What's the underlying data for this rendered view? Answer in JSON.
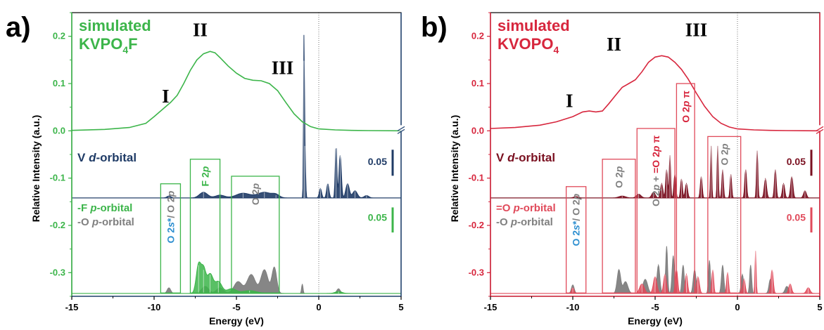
{
  "chart_data": [
    {
      "type": "line",
      "panel_letter": "a)",
      "title_line1": "simulated",
      "title_formula": {
        "base": "KVPO",
        "sub": "4",
        "tail": "F"
      },
      "xlabel": "Energy (eV)",
      "ylabel": "Relative Intensity (a.u.)",
      "xlim": [
        -15,
        5
      ],
      "ylim": [
        -0.35,
        0.25
      ],
      "x_ticks": [
        "-15",
        "-10",
        "-5",
        "0",
        "5"
      ],
      "y_ticks": [
        "0.2",
        "0.1",
        "0.0",
        "-0.1",
        "-0.2",
        "-0.3"
      ],
      "axis_color": "#2e4f7a",
      "tick_color": "#3cb54a",
      "peaks": [
        {
          "label": "I",
          "x": -9.3,
          "y": 0.06
        },
        {
          "label": "II",
          "x": -7.2,
          "y": 0.2
        },
        {
          "label": "III",
          "x": -2.2,
          "y": 0.12
        }
      ],
      "series": [
        {
          "kind": "line",
          "color": "#3cb54a",
          "x": [
            -15,
            -13,
            -11.5,
            -10.5,
            -10,
            -9.5,
            -9,
            -8.6,
            -8.2,
            -7.8,
            -7.4,
            -7,
            -6.6,
            -6.3,
            -6,
            -5.5,
            -5,
            -4.5,
            -4,
            -3.5,
            -3,
            -2.5,
            -2,
            -1.5,
            -1,
            -0.5,
            0,
            1,
            2,
            3,
            5
          ],
          "y": [
            0.001,
            0.003,
            0.007,
            0.016,
            0.03,
            0.045,
            0.06,
            0.075,
            0.1,
            0.128,
            0.15,
            0.163,
            0.168,
            0.165,
            0.155,
            0.137,
            0.122,
            0.111,
            0.107,
            0.106,
            0.1,
            0.085,
            0.06,
            0.036,
            0.019,
            0.009,
            0.004,
            0.002,
            0.001,
            0.0005,
            0
          ]
        }
      ],
      "v_orbital": {
        "label_prefix": "V ",
        "label_italic": "d",
        "label_suffix": "-orbital",
        "color": "#1f3b66",
        "baseline": -0.142,
        "scale_label": "0.05",
        "peaks": [
          {
            "x": -9.1,
            "h": 0.004,
            "w": 0.18
          },
          {
            "x": -7.0,
            "h": 0.012,
            "w": 0.35
          },
          {
            "x": -6.0,
            "h": 0.006,
            "w": 0.4
          },
          {
            "x": -4.6,
            "h": 0.01,
            "w": 0.6
          },
          {
            "x": -3.3,
            "h": 0.012,
            "w": 0.6
          },
          {
            "x": -2.6,
            "h": 0.006,
            "w": 0.3
          },
          {
            "x": -0.9,
            "h": 0.29,
            "w": 0.04
          },
          {
            "x": -0.85,
            "h": 0.11,
            "w": 0.06
          },
          {
            "x": 0.1,
            "h": 0.02,
            "w": 0.1
          },
          {
            "x": 0.55,
            "h": 0.03,
            "w": 0.1
          },
          {
            "x": 1.05,
            "h": 0.11,
            "w": 0.07
          },
          {
            "x": 1.3,
            "h": 0.09,
            "w": 0.1
          },
          {
            "x": 1.75,
            "h": 0.03,
            "w": 0.15
          },
          {
            "x": 2.2,
            "h": 0.015,
            "w": 0.2
          },
          {
            "x": 2.9,
            "h": 0.005,
            "w": 0.2
          }
        ]
      },
      "p_orbital": {
        "legend_line1": "-F ",
        "legend_line1_italic": "p",
        "legend_line1_suffix": "-orbital",
        "legend_line2": "-O ",
        "legend_line2_italic": "p",
        "legend_line2_suffix": "-orbital",
        "primary_color": "#3cb54a",
        "secondary_color": "#808080",
        "baseline": -0.344,
        "scale_label": "0.05",
        "gray_peaks": [
          {
            "x": -9.1,
            "h": 0.012,
            "w": 0.15
          },
          {
            "x": -6.9,
            "h": 0.015,
            "w": 0.3
          },
          {
            "x": -6.0,
            "h": 0.012,
            "w": 0.3
          },
          {
            "x": -4.9,
            "h": 0.025,
            "w": 0.35
          },
          {
            "x": -4.1,
            "h": 0.04,
            "w": 0.35
          },
          {
            "x": -3.3,
            "h": 0.05,
            "w": 0.3
          },
          {
            "x": -2.7,
            "h": 0.055,
            "w": 0.2
          },
          {
            "x": -1.0,
            "h": 0.02,
            "w": 0.06
          },
          {
            "x": 1.2,
            "h": 0.01,
            "w": 0.15
          }
        ],
        "green_peaks": [
          {
            "x": -7.3,
            "h": 0.06,
            "w": 0.2
          },
          {
            "x": -7.0,
            "h": 0.05,
            "w": 0.2
          },
          {
            "x": -6.6,
            "h": 0.04,
            "w": 0.25
          },
          {
            "x": -6.1,
            "h": 0.025,
            "w": 0.3
          },
          {
            "x": -5.3,
            "h": 0.01,
            "w": 0.4
          },
          {
            "x": -4.2,
            "h": 0.006,
            "w": 0.6
          },
          {
            "x": 1.2,
            "h": 0.004,
            "w": 0.3
          }
        ]
      },
      "boxes": [
        {
          "x0": -9.6,
          "x1": -8.4,
          "y0": -0.343,
          "y1": -0.112,
          "label": "O 2s*/ O 2p",
          "label_parts": [
            {
              "t": "O 2",
              "c": "#2e8fd0"
            },
            {
              "t": "s",
              "c": "#2e8fd0",
              "i": true
            },
            {
              "t": "*",
              "c": "#2e8fd0"
            },
            {
              "t": "/ O 2",
              "c": "#808080"
            },
            {
              "t": "p",
              "c": "#808080",
              "i": true
            }
          ],
          "color": "#3cb54a"
        },
        {
          "x0": -7.8,
          "x1": -6.0,
          "y0": -0.343,
          "y1": -0.06,
          "label": "F 2p",
          "label_parts": [
            {
              "t": "F 2",
              "c": "#3cb54a"
            },
            {
              "t": "p",
              "c": "#3cb54a",
              "i": true
            }
          ],
          "color": "#3cb54a"
        },
        {
          "x0": -5.3,
          "x1": -2.4,
          "y0": -0.343,
          "y1": -0.096,
          "label": "O 2p",
          "label_parts": [
            {
              "t": "O 2",
              "c": "#808080"
            },
            {
              "t": "p",
              "c": "#808080",
              "i": true
            }
          ],
          "color": "#3cb54a"
        }
      ]
    },
    {
      "type": "line",
      "panel_letter": "b)",
      "title_line1": "simulated",
      "title_formula": {
        "base": "KVOPO",
        "sub": "4",
        "tail": ""
      },
      "xlabel": "Energy (eV)",
      "ylabel": "Relative Intensity (a.u.)",
      "xlim": [
        -15,
        5
      ],
      "ylim": [
        -0.35,
        0.25
      ],
      "x_ticks": [
        "-15",
        "-10",
        "-5",
        "0",
        "5"
      ],
      "y_ticks": [
        "0.2",
        "0.1",
        "0.0",
        "-0.1",
        "-0.2",
        "-0.3"
      ],
      "axis_color": "#d7263d",
      "tick_color": "#d7263d",
      "peaks": [
        {
          "label": "I",
          "x": -10.2,
          "y": 0.05
        },
        {
          "label": "II",
          "x": -7.5,
          "y": 0.17
        },
        {
          "label": "III",
          "x": -2.5,
          "y": 0.2
        }
      ],
      "series": [
        {
          "kind": "line",
          "color": "#d7263d",
          "x": [
            -15,
            -13.5,
            -12,
            -11,
            -10,
            -9.4,
            -9,
            -8.6,
            -8.2,
            -7.8,
            -7.4,
            -7,
            -6.6,
            -6.2,
            -5.8,
            -5.4,
            -5,
            -4.6,
            -4.2,
            -3.8,
            -3.4,
            -3,
            -2.5,
            -2,
            -1.5,
            -1,
            -0.5,
            0,
            1,
            2,
            3,
            5
          ],
          "y": [
            0.005,
            0.007,
            0.012,
            0.019,
            0.03,
            0.04,
            0.042,
            0.04,
            0.042,
            0.058,
            0.075,
            0.092,
            0.1,
            0.108,
            0.125,
            0.145,
            0.156,
            0.159,
            0.156,
            0.145,
            0.13,
            0.11,
            0.08,
            0.052,
            0.03,
            0.016,
            0.008,
            0.004,
            0.002,
            0.001,
            0.0005,
            0
          ]
        }
      ],
      "v_orbital": {
        "label_prefix": "V ",
        "label_italic": "d",
        "label_suffix": "-orbital",
        "color": "#7a1020",
        "baseline": -0.142,
        "scale_label": "0.05",
        "peaks": [
          {
            "x": -9.8,
            "h": 0.003,
            "w": 0.2
          },
          {
            "x": -7.0,
            "h": 0.004,
            "w": 0.3
          },
          {
            "x": -6.0,
            "h": 0.008,
            "w": 0.2
          },
          {
            "x": -5.1,
            "h": 0.012,
            "w": 0.15
          },
          {
            "x": -4.6,
            "h": 0.03,
            "w": 0.1
          },
          {
            "x": -4.3,
            "h": 0.06,
            "w": 0.08
          },
          {
            "x": -4.1,
            "h": 0.09,
            "w": 0.06
          },
          {
            "x": -3.8,
            "h": 0.05,
            "w": 0.08
          },
          {
            "x": -3.4,
            "h": 0.04,
            "w": 0.08
          },
          {
            "x": -3.1,
            "h": 0.03,
            "w": 0.1
          },
          {
            "x": -2.2,
            "h": 0.045,
            "w": 0.08
          },
          {
            "x": -1.6,
            "h": 0.11,
            "w": 0.05
          },
          {
            "x": -1.2,
            "h": 0.11,
            "w": 0.05
          },
          {
            "x": -0.9,
            "h": 0.06,
            "w": 0.07
          },
          {
            "x": -0.4,
            "h": 0.05,
            "w": 0.07
          },
          {
            "x": 0.5,
            "h": 0.06,
            "w": 0.08
          },
          {
            "x": 1.2,
            "h": 0.1,
            "w": 0.06
          },
          {
            "x": 1.7,
            "h": 0.04,
            "w": 0.1
          },
          {
            "x": 2.3,
            "h": 0.06,
            "w": 0.08
          },
          {
            "x": 2.8,
            "h": 0.03,
            "w": 0.1
          },
          {
            "x": 3.3,
            "h": 0.045,
            "w": 0.1
          },
          {
            "x": 4.1,
            "h": 0.015,
            "w": 0.12
          }
        ]
      },
      "p_orbital": {
        "legend_line1": "=O ",
        "legend_line1_italic": "p",
        "legend_line1_suffix": "-orbital",
        "legend_line2": "-O ",
        "legend_line2_italic": "p",
        "legend_line2_suffix": "-orbital",
        "primary_color": "#e04a5a",
        "secondary_color": "#808080",
        "baseline": -0.344,
        "scale_label": "0.05",
        "gray_peaks": [
          {
            "x": -10.0,
            "h": 0.018,
            "w": 0.12
          },
          {
            "x": -7.2,
            "h": 0.05,
            "w": 0.15
          },
          {
            "x": -6.8,
            "h": 0.025,
            "w": 0.2
          },
          {
            "x": -5.6,
            "h": 0.03,
            "w": 0.2
          },
          {
            "x": -4.8,
            "h": 0.06,
            "w": 0.12
          },
          {
            "x": -4.3,
            "h": 0.1,
            "w": 0.08
          },
          {
            "x": -3.9,
            "h": 0.08,
            "w": 0.1
          },
          {
            "x": -3.3,
            "h": 0.06,
            "w": 0.1
          },
          {
            "x": -2.6,
            "h": 0.05,
            "w": 0.12
          },
          {
            "x": -1.7,
            "h": 0.07,
            "w": 0.08
          },
          {
            "x": -0.9,
            "h": 0.06,
            "w": 0.1
          },
          {
            "x": 0.3,
            "h": 0.04,
            "w": 0.1
          },
          {
            "x": 0.8,
            "h": 0.06,
            "w": 0.08
          },
          {
            "x": 2.0,
            "h": 0.03,
            "w": 0.12
          },
          {
            "x": 3.0,
            "h": 0.015,
            "w": 0.15
          }
        ],
        "primary_peaks": [
          {
            "x": -10.0,
            "h": 0.012,
            "w": 0.1
          },
          {
            "x": -5.8,
            "h": 0.02,
            "w": 0.2
          },
          {
            "x": -5.0,
            "h": 0.035,
            "w": 0.15
          },
          {
            "x": -4.4,
            "h": 0.04,
            "w": 0.12
          },
          {
            "x": -3.7,
            "h": 0.05,
            "w": 0.1
          },
          {
            "x": -3.1,
            "h": 0.04,
            "w": 0.1
          },
          {
            "x": -2.4,
            "h": 0.035,
            "w": 0.12
          },
          {
            "x": -1.5,
            "h": 0.05,
            "w": 0.08
          },
          {
            "x": -0.6,
            "h": 0.045,
            "w": 0.08
          },
          {
            "x": 0.4,
            "h": 0.03,
            "w": 0.1
          },
          {
            "x": 1.1,
            "h": 0.09,
            "w": 0.05
          },
          {
            "x": 2.1,
            "h": 0.05,
            "w": 0.1
          },
          {
            "x": 3.2,
            "h": 0.02,
            "w": 0.12
          },
          {
            "x": 4.3,
            "h": 0.012,
            "w": 0.15
          }
        ]
      },
      "boxes": [
        {
          "x0": -10.4,
          "x1": -9.2,
          "y0": -0.343,
          "y1": -0.118,
          "label": "O 2s*/ O 2p",
          "label_parts": [
            {
              "t": "O 2",
              "c": "#2e8fd0"
            },
            {
              "t": "s",
              "c": "#2e8fd0",
              "i": true
            },
            {
              "t": "*",
              "c": "#2e8fd0"
            },
            {
              "t": "/ O 2",
              "c": "#808080"
            },
            {
              "t": "p",
              "c": "#808080",
              "i": true
            }
          ],
          "color": "#e04a5a"
        },
        {
          "x0": -8.2,
          "x1": -6.2,
          "y0": -0.343,
          "y1": -0.06,
          "label": "O 2p",
          "label_parts": [
            {
              "t": "O 2",
              "c": "#808080"
            },
            {
              "t": "p",
              "c": "#808080",
              "i": true
            }
          ],
          "color": "#e04a5a"
        },
        {
          "x0": -6.1,
          "x1": -3.8,
          "y0": -0.343,
          "y1": 0.005,
          "label": "O 2p + =O 2p π",
          "label_parts": [
            {
              "t": "O 2",
              "c": "#808080"
            },
            {
              "t": "p",
              "c": "#808080",
              "i": true
            },
            {
              "t": " + ",
              "c": "#808080"
            },
            {
              "t": "=O 2",
              "c": "#d7263d"
            },
            {
              "t": "p",
              "c": "#d7263d",
              "i": true
            },
            {
              "t": " π",
              "c": "#d7263d"
            }
          ],
          "two_line": true,
          "color": "#e04a5a"
        },
        {
          "x0": -3.7,
          "x1": -2.6,
          "y0": -0.343,
          "y1": 0.1,
          "label": "O 2p π",
          "label_parts": [
            {
              "t": "O 2",
              "c": "#d7263d"
            },
            {
              "t": "p",
              "c": "#d7263d",
              "i": true
            },
            {
              "t": " π",
              "c": "#d7263d"
            }
          ],
          "color": "#e04a5a"
        },
        {
          "x0": -1.8,
          "x1": 0.2,
          "y0": -0.343,
          "y1": -0.012,
          "label": "O 2p",
          "label_parts": [
            {
              "t": "O 2",
              "c": "#808080"
            },
            {
              "t": "p",
              "c": "#808080",
              "i": true
            }
          ],
          "color": "#e04a5a"
        }
      ]
    }
  ]
}
